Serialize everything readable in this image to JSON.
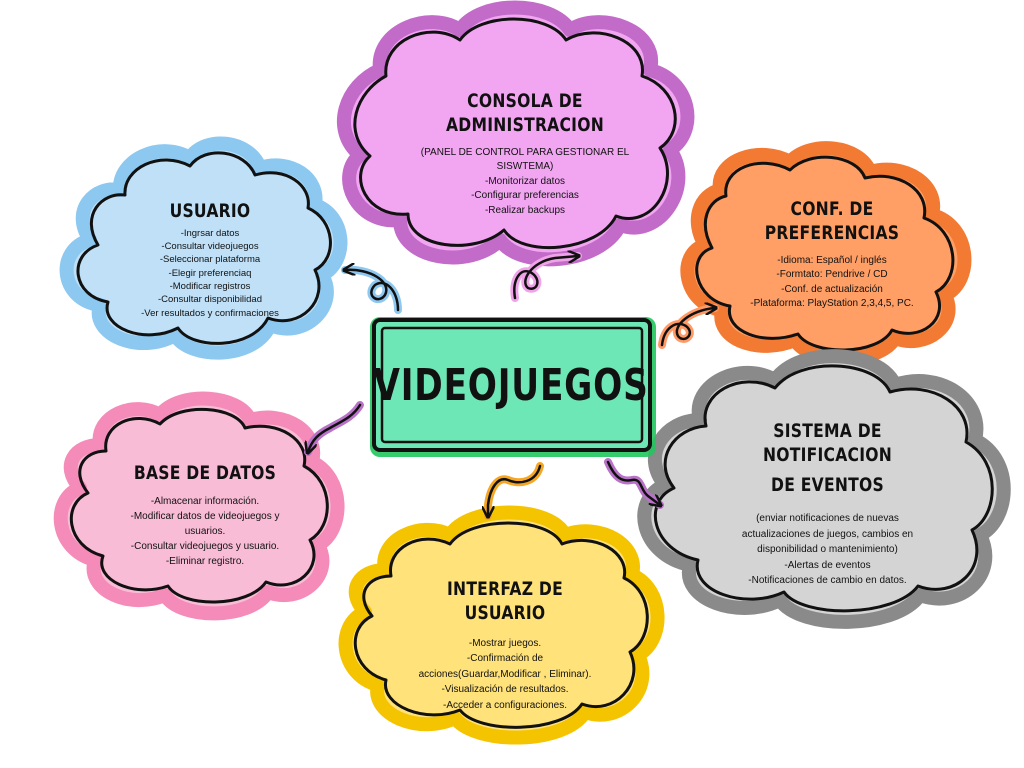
{
  "center": {
    "label": "VIDEOJUEGOS"
  },
  "colors": {
    "center_fill": "#6ee7b7",
    "center_border": "#22c55e",
    "usuario": "#bfe0f7",
    "usuario_border": "#8cc8f0",
    "consola": "#f2a6f2",
    "consola_border": "#c26bc9",
    "preferencias": "#ff9f66",
    "preferencias_border": "#f27a33",
    "notificacion": "#d4d4d4",
    "notificacion_border": "#8a8a8a",
    "interfaz": "#ffe27a",
    "interfaz_border": "#f5c400",
    "base_datos": "#f9bcd6",
    "base_datos_border": "#f48bb8",
    "arrow_usuario": "#8ec8f0",
    "arrow_consola": "#f0a3e8",
    "arrow_preferencias": "#ff9a66",
    "arrow_notificacion": "#b872c7",
    "arrow_interfaz": "#f5a623",
    "arrow_base_datos": "#b872c7"
  },
  "nodes": {
    "usuario": {
      "title": "USUARIO",
      "items": [
        "-Ingrsar datos",
        "-Consultar videojuegos",
        "-Seleccionar plataforma",
        "-Elegir preferenciaq",
        "-Modificar registros",
        "-Consultar disponibilidad",
        "-Ver resultados y confirmaciones"
      ]
    },
    "consola": {
      "title": "CONSOLA DE ADMINISTRACION",
      "items": [
        "(PANEL DE CONTROL PARA GESTIONAR EL",
        "SISWTEMA)",
        "-Monitorizar datos",
        "-Configurar preferencias",
        "-Realizar backups"
      ]
    },
    "preferencias": {
      "title": "CONF. DE PREFERENCIAS",
      "items": [
        "-Idioma: Español / inglés",
        "-Formtato: Pendrive / CD",
        "-Conf. de actualización",
        "-Plataforma: PlayStation 2,3,4,5, PC."
      ]
    },
    "notificacion": {
      "title_line1": "SISTEMA DE NOTIFICACION",
      "title_line2": "DE EVENTOS",
      "items": [
        "(enviar notificaciones de nuevas",
        "actualizaciones de juegos, cambios en",
        "disponibilidad o mantenimiento)",
        "-Alertas de eventos",
        "-Notificaciones de cambio en datos."
      ]
    },
    "interfaz": {
      "title": "INTERFAZ DE USUARIO",
      "items": [
        "-Mostrar juegos.",
        "-Confirmación de",
        "acciones(Guardar,Modificar , Eliminar).",
        "-Visualización de resultados.",
        "-Acceder a configuraciones."
      ]
    },
    "base_datos": {
      "title": "BASE DE DATOS",
      "items": [
        "-Almacenar información.",
        "-Modificar datos de videojuegos y",
        "usuarios.",
        "-Consultar videojuegos y usuario.",
        "-Eliminar registro."
      ]
    }
  }
}
